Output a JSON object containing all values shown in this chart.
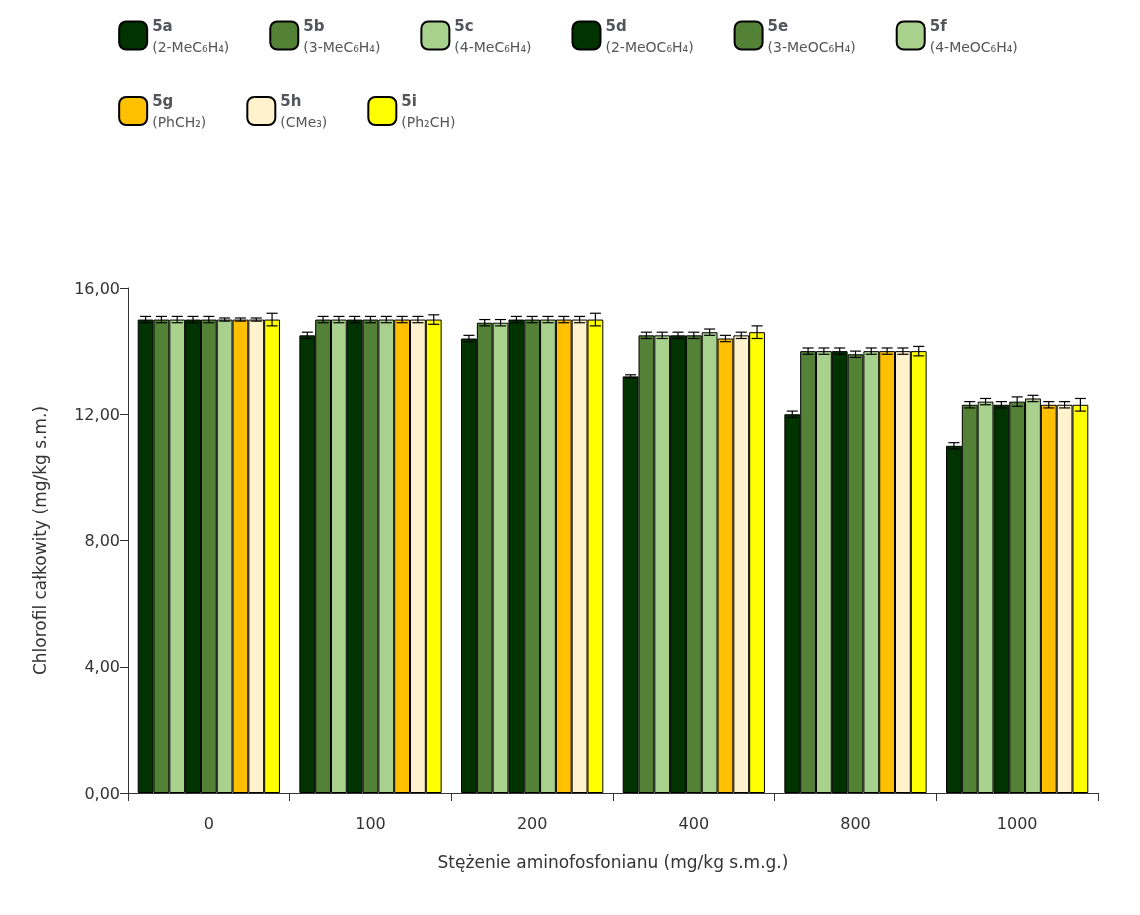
{
  "chart_data": {
    "type": "bar",
    "xlabel": "Stężenie aminofosfonianu (mg/kg s.m.g.)",
    "ylabel": "Chlorofil całkowity (mg/kg s.m.)",
    "categories": [
      "0",
      "100",
      "200",
      "400",
      "800",
      "1000"
    ],
    "ylim": [
      0,
      16
    ],
    "yticks": [
      {
        "value": 0,
        "label": "0,00"
      },
      {
        "value": 4,
        "label": "4,00"
      },
      {
        "value": 8,
        "label": "8,00"
      },
      {
        "value": 12,
        "label": "12,00"
      },
      {
        "value": 16,
        "label": "16,00"
      }
    ],
    "grid": false,
    "legend": "top",
    "series": [
      {
        "name": "5a (2-MeC₆H₄)",
        "color": "#003300",
        "values": [
          15.0,
          14.5,
          14.4,
          13.2,
          12.0,
          11.0
        ],
        "errors": [
          0.1,
          0.1,
          0.1,
          0.05,
          0.1,
          0.1
        ]
      },
      {
        "name": "5b (3-MeC₆H₄)",
        "color": "#538135",
        "values": [
          15.0,
          15.0,
          14.9,
          14.5,
          14.0,
          12.3
        ],
        "errors": [
          0.1,
          0.1,
          0.1,
          0.1,
          0.1,
          0.1
        ]
      },
      {
        "name": "5c (4-MeC₆H₄)",
        "color": "#a9d18e",
        "values": [
          15.0,
          15.0,
          14.9,
          14.5,
          14.0,
          12.4
        ],
        "errors": [
          0.1,
          0.1,
          0.1,
          0.1,
          0.1,
          0.1
        ]
      },
      {
        "name": "5d (2-MeOC₆H₄)",
        "color": "#003300",
        "values": [
          15.0,
          15.0,
          15.0,
          14.5,
          14.0,
          12.3
        ],
        "errors": [
          0.1,
          0.1,
          0.1,
          0.1,
          0.1,
          0.1
        ]
      },
      {
        "name": "5e (3-MeOC₆H₄)",
        "color": "#538135",
        "values": [
          15.0,
          15.0,
          15.0,
          14.5,
          13.9,
          12.4
        ],
        "errors": [
          0.1,
          0.1,
          0.1,
          0.1,
          0.1,
          0.15
        ]
      },
      {
        "name": "5f (4-MeOC₆H₄)",
        "color": "#a9d18e",
        "values": [
          15.0,
          15.0,
          15.0,
          14.6,
          14.0,
          12.5
        ],
        "errors": [
          0.05,
          0.1,
          0.1,
          0.1,
          0.1,
          0.1
        ]
      },
      {
        "name": "5g (PhCH₂)",
        "color": "#ffc000",
        "values": [
          15.0,
          15.0,
          15.0,
          14.4,
          14.0,
          12.3
        ],
        "errors": [
          0.05,
          0.1,
          0.1,
          0.1,
          0.1,
          0.1
        ]
      },
      {
        "name": "5h (CMe₃)",
        "color": "#fff2cc",
        "values": [
          15.0,
          15.0,
          15.0,
          14.5,
          14.0,
          12.3
        ],
        "errors": [
          0.05,
          0.1,
          0.1,
          0.1,
          0.1,
          0.1
        ]
      },
      {
        "name": "5i (Ph₂CH)",
        "color": "#ffff00",
        "values": [
          15.0,
          15.0,
          15.0,
          14.6,
          14.0,
          12.3
        ],
        "errors": [
          0.2,
          0.15,
          0.2,
          0.2,
          0.15,
          0.2
        ]
      }
    ]
  }
}
